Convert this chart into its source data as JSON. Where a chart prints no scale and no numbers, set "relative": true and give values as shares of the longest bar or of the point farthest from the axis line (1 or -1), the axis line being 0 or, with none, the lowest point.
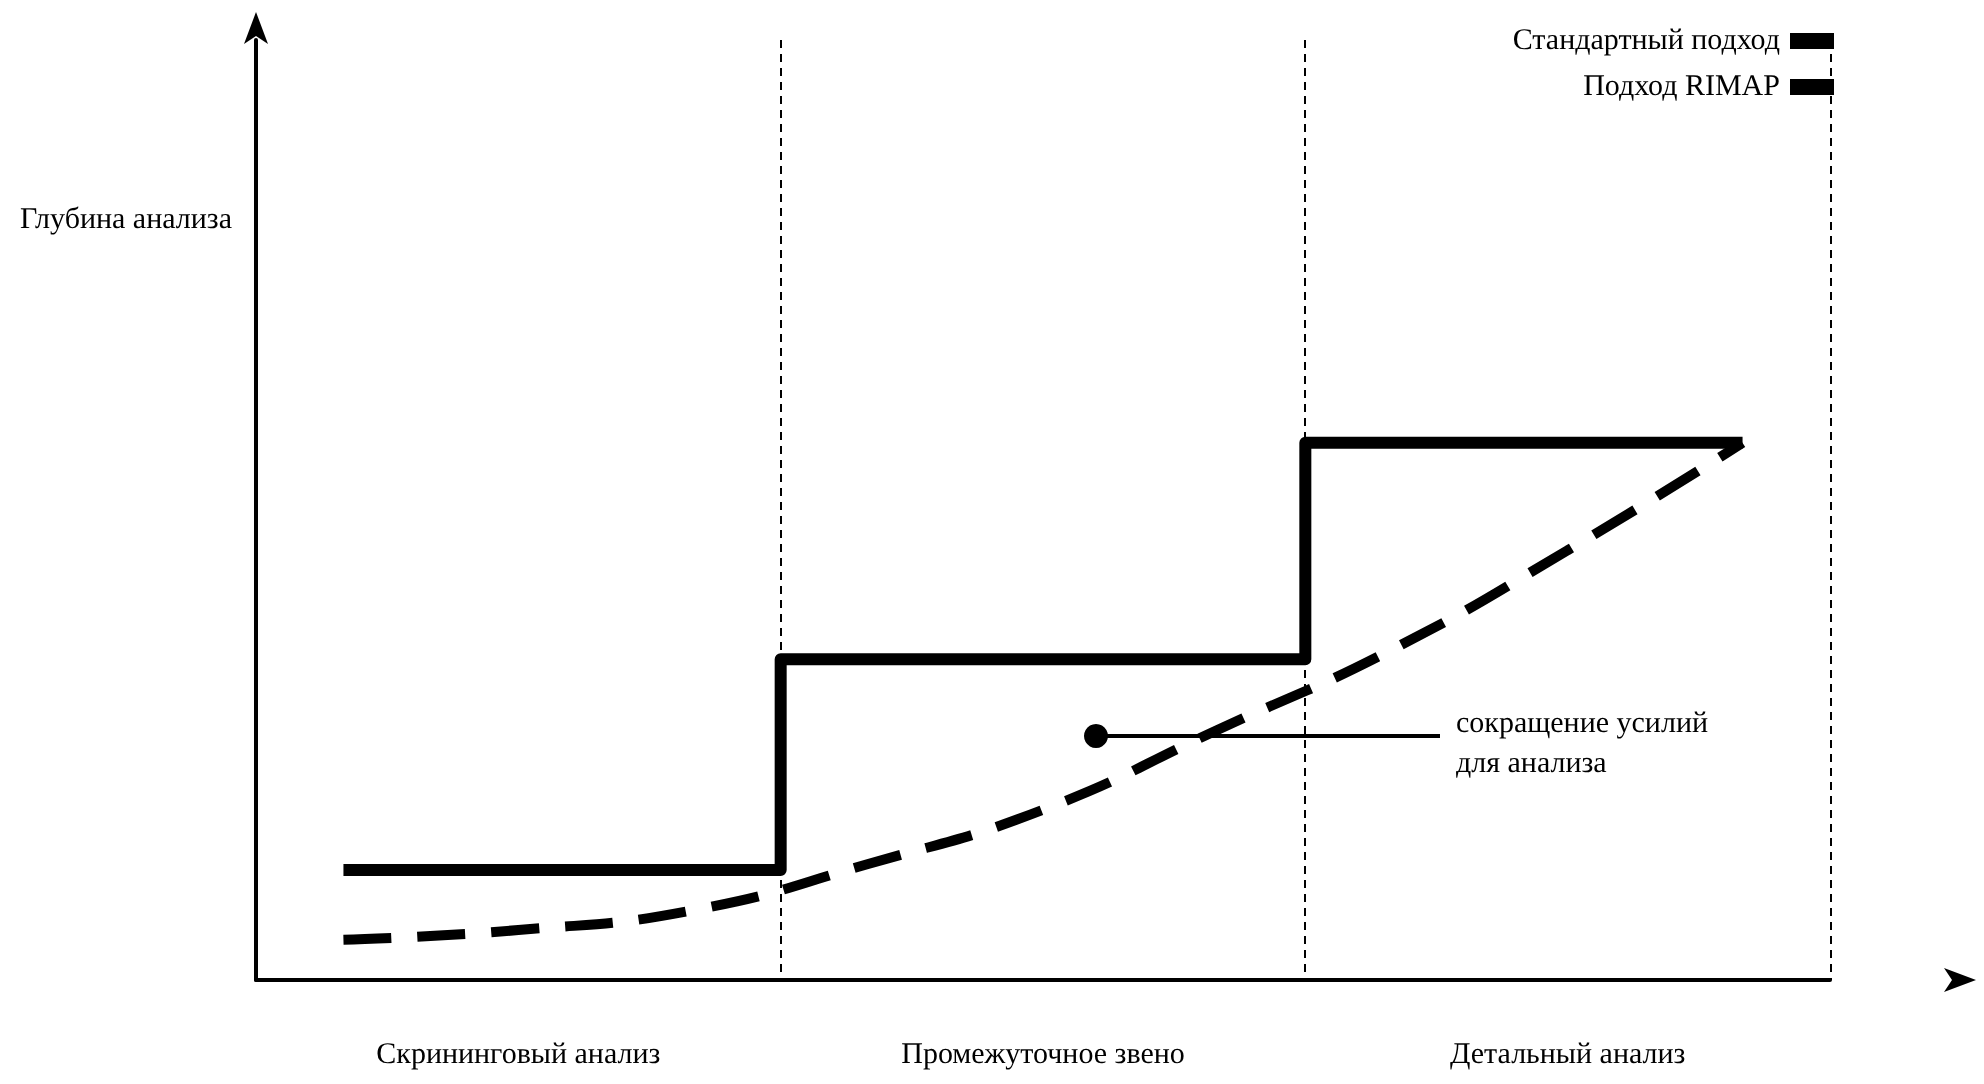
{
  "chart_data": {
    "type": "line",
    "relative": true,
    "categories": [
      null,
      "Скрининговый анализ",
      null,
      null,
      "Промежуточное звено",
      null,
      null,
      "Детальный анализ",
      null
    ],
    "series": [
      {
        "name": "Стандартный подход",
        "type": "step",
        "color": "#000000",
        "line_style": "solid",
        "values": [
          0.205,
          0.205,
          0.205,
          0.597,
          0.597,
          0.597,
          1,
          1,
          1
        ]
      },
      {
        "name": "Подход RIMAP",
        "type": "line",
        "color": "#000000",
        "line_style": "dashed",
        "values": [
          0.075,
          0.093,
          0.13,
          0.216,
          0.317,
          0.466,
          0.616,
          0.8,
          1
        ]
      }
    ],
    "grid": "x",
    "legend": "top right",
    "marker": "none",
    "annotations": [
      "сокращение усилий для анализа",
      "Глубина анализа"
    ]
  }
}
